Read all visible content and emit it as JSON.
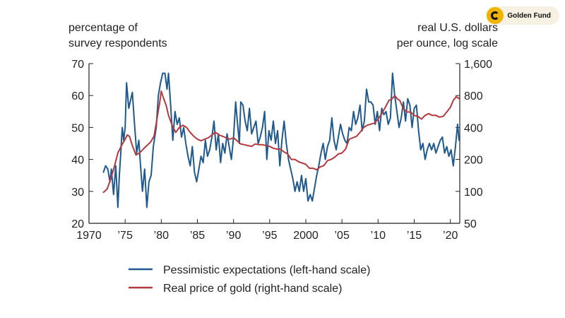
{
  "brand": {
    "name": "Golden Fund",
    "icon": "golden-fund-logo-icon"
  },
  "chart_data": {
    "type": "line",
    "title": "",
    "left_axis_label": [
      "percentage of",
      "survey respondents"
    ],
    "right_axis_label": [
      "real U.S. dollars",
      "per ounce, log scale"
    ],
    "xlim": [
      1970,
      2021.3
    ],
    "ylim_left": [
      20,
      70
    ],
    "ylim_right": [
      50,
      1600
    ],
    "right_scale": "log",
    "x_ticks": [
      1970,
      1975,
      1980,
      1985,
      1990,
      1995,
      2000,
      2005,
      2010,
      2015,
      2020
    ],
    "x_tick_labels": [
      "1970",
      "’75",
      "’80",
      "’85",
      "’90",
      "’95",
      "2000",
      "’05",
      "’10",
      "’15",
      "’20"
    ],
    "y_left_ticks": [
      20,
      30,
      40,
      50,
      60,
      70
    ],
    "y_left_tick_labels": [
      "20",
      "30",
      "40",
      "50",
      "60",
      "70"
    ],
    "y_right_ticks": [
      50,
      100,
      200,
      400,
      800,
      1600
    ],
    "y_right_tick_labels": [
      "50",
      "100",
      "200",
      "400",
      "800",
      "1,600"
    ],
    "colors": {
      "pessimistic": "#1f5a8f",
      "gold": "#b5383d"
    },
    "series": [
      {
        "name": "Pessimistic expectations (left-hand scale)",
        "axis": "left",
        "x": [
          1972.0,
          1972.3,
          1972.6,
          1972.9,
          1973.1,
          1973.4,
          1973.7,
          1974.0,
          1974.2,
          1974.4,
          1974.6,
          1974.8,
          1975.0,
          1975.2,
          1975.5,
          1975.7,
          1976.0,
          1976.3,
          1976.6,
          1976.9,
          1977.1,
          1977.4,
          1977.7,
          1978.0,
          1978.3,
          1978.6,
          1978.9,
          1979.1,
          1979.3,
          1979.6,
          1979.9,
          1980.2,
          1980.5,
          1980.8,
          1981.0,
          1981.3,
          1981.6,
          1981.9,
          1982.2,
          1982.5,
          1982.8,
          1983.1,
          1983.4,
          1983.7,
          1984.0,
          1984.3,
          1984.6,
          1984.9,
          1985.2,
          1985.5,
          1985.8,
          1986.1,
          1986.4,
          1986.7,
          1987.0,
          1987.3,
          1987.6,
          1987.9,
          1988.2,
          1988.5,
          1988.8,
          1989.1,
          1989.4,
          1989.7,
          1990.0,
          1990.3,
          1990.6,
          1990.8,
          1991.0,
          1991.3,
          1991.6,
          1991.9,
          1992.2,
          1992.5,
          1992.8,
          1993.1,
          1993.4,
          1993.7,
          1994.0,
          1994.3,
          1994.6,
          1994.9,
          1995.2,
          1995.5,
          1995.8,
          1996.1,
          1996.4,
          1996.7,
          1997.0,
          1997.3,
          1997.6,
          1997.9,
          1998.2,
          1998.5,
          1998.8,
          1999.1,
          1999.4,
          1999.7,
          2000.0,
          2000.3,
          2000.6,
          2000.9,
          2001.2,
          2001.5,
          2001.8,
          2002.1,
          2002.4,
          2002.7,
          2003.0,
          2003.3,
          2003.6,
          2003.9,
          2004.2,
          2004.5,
          2004.8,
          2005.1,
          2005.4,
          2005.7,
          2006.0,
          2006.3,
          2006.6,
          2006.9,
          2007.2,
          2007.5,
          2007.8,
          2008.1,
          2008.4,
          2008.7,
          2009.0,
          2009.3,
          2009.6,
          2009.9,
          2010.2,
          2010.5,
          2010.8,
          2011.1,
          2011.4,
          2011.7,
          2012.0,
          2012.3,
          2012.6,
          2012.9,
          2013.2,
          2013.5,
          2013.8,
          2014.1,
          2014.4,
          2014.7,
          2015.0,
          2015.3,
          2015.6,
          2015.9,
          2016.2,
          2016.5,
          2016.8,
          2017.1,
          2017.4,
          2017.7,
          2018.0,
          2018.3,
          2018.6,
          2018.9,
          2019.2,
          2019.5,
          2019.8,
          2020.1,
          2020.4,
          2020.7,
          2021.0,
          2021.2
        ],
        "values": [
          36,
          38,
          37,
          33,
          37,
          29,
          38,
          25,
          35,
          42,
          50,
          46,
          50,
          64,
          56,
          58,
          61,
          51,
          42,
          46,
          39,
          30,
          37,
          25,
          33,
          35,
          44,
          47,
          50,
          60,
          64,
          67,
          67,
          62,
          67,
          57,
          46,
          55,
          51,
          53,
          47,
          50,
          45,
          41,
          38,
          44,
          36,
          33,
          37,
          41,
          39,
          46,
          41,
          43,
          47,
          52,
          43,
          48,
          39,
          45,
          42,
          48,
          44,
          40,
          47,
          58,
          50,
          45,
          58,
          57,
          52,
          49,
          56,
          48,
          50,
          52,
          45,
          47,
          50,
          55,
          40,
          49,
          46,
          52,
          45,
          49,
          38,
          46,
          52,
          45,
          40,
          37,
          34,
          30,
          33,
          30,
          35,
          30,
          34,
          27,
          29,
          27,
          31,
          35,
          38,
          42,
          45,
          40,
          44,
          46,
          53,
          46,
          43,
          47,
          51,
          48,
          46,
          45,
          50,
          49,
          55,
          51,
          53,
          57,
          49,
          52,
          62,
          58,
          58,
          57,
          51,
          55,
          49,
          56,
          54,
          55,
          51,
          53,
          67,
          60,
          55,
          50,
          53,
          58,
          52,
          59,
          57,
          50,
          56,
          57,
          49,
          43,
          45,
          40,
          43,
          45,
          43,
          45,
          42,
          44,
          46,
          47,
          42,
          44,
          41,
          43,
          38,
          44,
          51,
          46
        ]
      },
      {
        "name": "Real price of gold (right-hand scale)",
        "axis": "right",
        "x": [
          1972.0,
          1972.5,
          1973.0,
          1973.5,
          1974.0,
          1974.5,
          1975.0,
          1975.3,
          1975.6,
          1976.0,
          1976.5,
          1977.0,
          1977.5,
          1978.0,
          1978.5,
          1979.0,
          1979.4,
          1979.8,
          1980.0,
          1980.3,
          1980.7,
          1981.0,
          1981.5,
          1982.0,
          1982.5,
          1983.0,
          1983.5,
          1984.0,
          1984.5,
          1985.0,
          1985.5,
          1986.0,
          1986.5,
          1987.0,
          1987.5,
          1988.0,
          1988.5,
          1989.0,
          1989.5,
          1990.0,
          1990.5,
          1991.0,
          1991.5,
          1992.0,
          1992.5,
          1993.0,
          1993.5,
          1994.0,
          1994.5,
          1995.0,
          1995.5,
          1996.0,
          1996.5,
          1997.0,
          1997.5,
          1998.0,
          1998.5,
          1999.0,
          1999.5,
          2000.0,
          2000.5,
          2001.0,
          2001.5,
          2002.0,
          2002.5,
          2003.0,
          2003.5,
          2004.0,
          2004.5,
          2005.0,
          2005.5,
          2006.0,
          2006.5,
          2007.0,
          2007.5,
          2008.0,
          2008.5,
          2009.0,
          2009.5,
          2010.0,
          2010.5,
          2011.0,
          2011.5,
          2011.9,
          2012.3,
          2012.7,
          2013.0,
          2013.5,
          2014.0,
          2014.5,
          2015.0,
          2015.5,
          2016.0,
          2016.5,
          2017.0,
          2017.5,
          2018.0,
          2018.5,
          2019.0,
          2019.5,
          2020.0,
          2020.4,
          2020.8,
          2021.2
        ],
        "values": [
          98,
          105,
          130,
          170,
          230,
          270,
          310,
          340,
          330,
          270,
          220,
          230,
          250,
          270,
          290,
          330,
          480,
          700,
          880,
          760,
          640,
          520,
          420,
          360,
          400,
          420,
          400,
          360,
          330,
          310,
          300,
          310,
          320,
          340,
          360,
          340,
          330,
          320,
          310,
          320,
          300,
          280,
          275,
          270,
          265,
          280,
          275,
          275,
          270,
          265,
          255,
          250,
          250,
          235,
          225,
          200,
          200,
          190,
          185,
          180,
          165,
          165,
          160,
          170,
          175,
          195,
          200,
          210,
          225,
          230,
          250,
          310,
          320,
          330,
          360,
          400,
          420,
          430,
          440,
          480,
          540,
          620,
          720,
          740,
          800,
          740,
          720,
          600,
          560,
          560,
          520,
          510,
          480,
          520,
          540,
          520,
          520,
          500,
          510,
          560,
          620,
          720,
          780,
          750
        ]
      }
    ]
  }
}
